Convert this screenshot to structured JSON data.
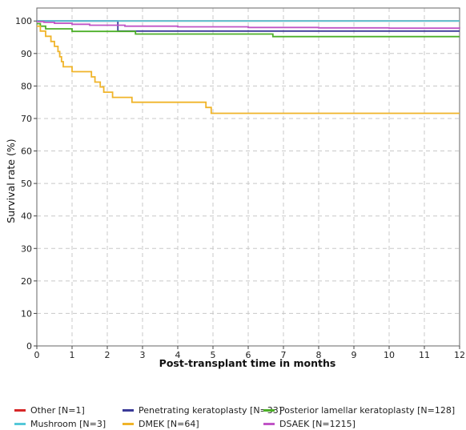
{
  "chart_data": {
    "type": "line",
    "title": "",
    "xlabel": "Post-transplant time in months",
    "ylabel": "Survival rate (%)",
    "xlim": [
      0,
      12
    ],
    "ylim": [
      0,
      104
    ],
    "x_ticks": [
      0,
      1,
      2,
      3,
      4,
      5,
      6,
      7,
      8,
      9,
      10,
      11,
      12
    ],
    "y_ticks": [
      0,
      10,
      20,
      30,
      40,
      50,
      60,
      70,
      80,
      90,
      100
    ],
    "grid": true,
    "legend_position": "bottom",
    "step": true,
    "series": [
      {
        "name": "Other [N=1]",
        "color": "#d62728",
        "x": [
          0,
          12
        ],
        "y": [
          100,
          100
        ]
      },
      {
        "name": "Penetrating keratoplasty [N=33]",
        "color": "#3b3b98",
        "x": [
          0,
          2.3,
          12
        ],
        "y": [
          100,
          96.9,
          96.9
        ]
      },
      {
        "name": "Posterior lamellar keratoplasty [N=128]",
        "color": "#4caf28",
        "x": [
          0,
          0.1,
          0.25,
          1.0,
          2.8,
          6.7,
          12
        ],
        "y": [
          99.2,
          98.4,
          97.6,
          96.8,
          96.0,
          95.2,
          95.2
        ]
      },
      {
        "name": "Mushroom [N=3]",
        "color": "#55c8d8",
        "x": [
          0,
          12
        ],
        "y": [
          100,
          100
        ]
      },
      {
        "name": "DMEK [N=64]",
        "color": "#f0b429",
        "x": [
          0,
          0.1,
          0.25,
          0.4,
          0.5,
          0.6,
          0.65,
          0.7,
          0.75,
          1.0,
          1.55,
          1.65,
          1.8,
          1.9,
          2.0,
          2.15,
          2.7,
          4.8,
          4.95,
          12
        ],
        "y": [
          98.4,
          96.9,
          95.3,
          93.7,
          92.2,
          90.6,
          89.0,
          87.5,
          85.9,
          84.4,
          82.8,
          81.2,
          79.7,
          78.1,
          78.1,
          76.5,
          75.0,
          73.4,
          71.6,
          71.6
        ]
      },
      {
        "name": "DSAEK [N=1215]",
        "color": "#c054c6",
        "x": [
          0,
          0.2,
          0.5,
          1.0,
          1.5,
          2.5,
          4.0,
          6.0,
          8.0,
          10.0,
          12
        ],
        "y": [
          99.8,
          99.6,
          99.3,
          99.0,
          98.7,
          98.4,
          98.2,
          98.0,
          97.9,
          97.8,
          97.7
        ]
      }
    ]
  }
}
